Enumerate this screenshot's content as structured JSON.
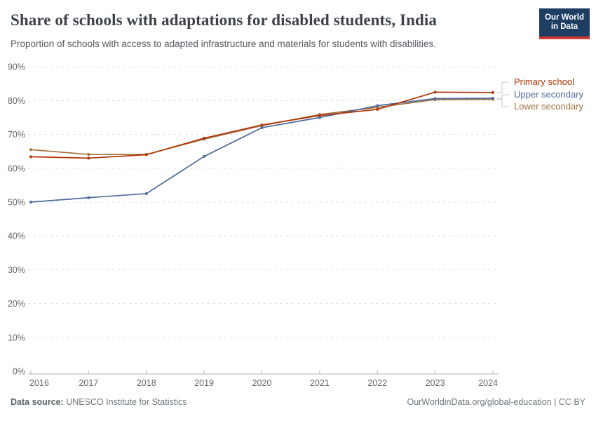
{
  "header": {
    "title": "Share of schools with adaptations for disabled students, India",
    "subtitle": "Proportion of schools with access to adapted infrastructure and materials for students with disabilities.",
    "logo": {
      "line1": "Our World",
      "line2": "in Data",
      "bg_color": "#1D3D63",
      "accent_color": "#CE3A32"
    }
  },
  "chart_data": {
    "type": "line",
    "title": "Share of schools with adaptations for disabled students, India",
    "x": [
      "2016",
      "2017",
      "2018",
      "2019",
      "2020",
      "2021",
      "2022",
      "2023",
      "2024"
    ],
    "series": [
      {
        "name": "Primary school",
        "color": "#B13507",
        "values": [
          63.4,
          63.0,
          64.0,
          68.9,
          72.8,
          75.6,
          77.4,
          82.5,
          82.4
        ]
      },
      {
        "name": "Upper secondary",
        "color": "#4C6A9C",
        "values": [
          50.0,
          51.3,
          52.5,
          63.5,
          72.0,
          75.0,
          78.5,
          80.6,
          80.7
        ]
      },
      {
        "name": "Lower secondary",
        "color": "#A0713F",
        "values": [
          65.5,
          64.1,
          64.1,
          68.6,
          72.6,
          75.9,
          78.0,
          80.3,
          80.4
        ]
      }
    ],
    "yticks": [
      0,
      10,
      20,
      30,
      40,
      50,
      60,
      70,
      80,
      90
    ],
    "ytick_suffix": "%",
    "ylim": [
      0,
      90
    ],
    "xlabel": "",
    "ylabel": "",
    "grid": "horizontal-dashed",
    "legend_position": "right",
    "grid_color": "#dcdcdc",
    "axis_color": "#b5b5b5",
    "tick_text_color": "#666666",
    "connector_color": "#c8c8c8"
  },
  "footer": {
    "source_label": "Data source:",
    "source_value": "UNESCO Institute for Statistics",
    "right_text": "OurWorldinData.org/global-education | CC BY"
  }
}
